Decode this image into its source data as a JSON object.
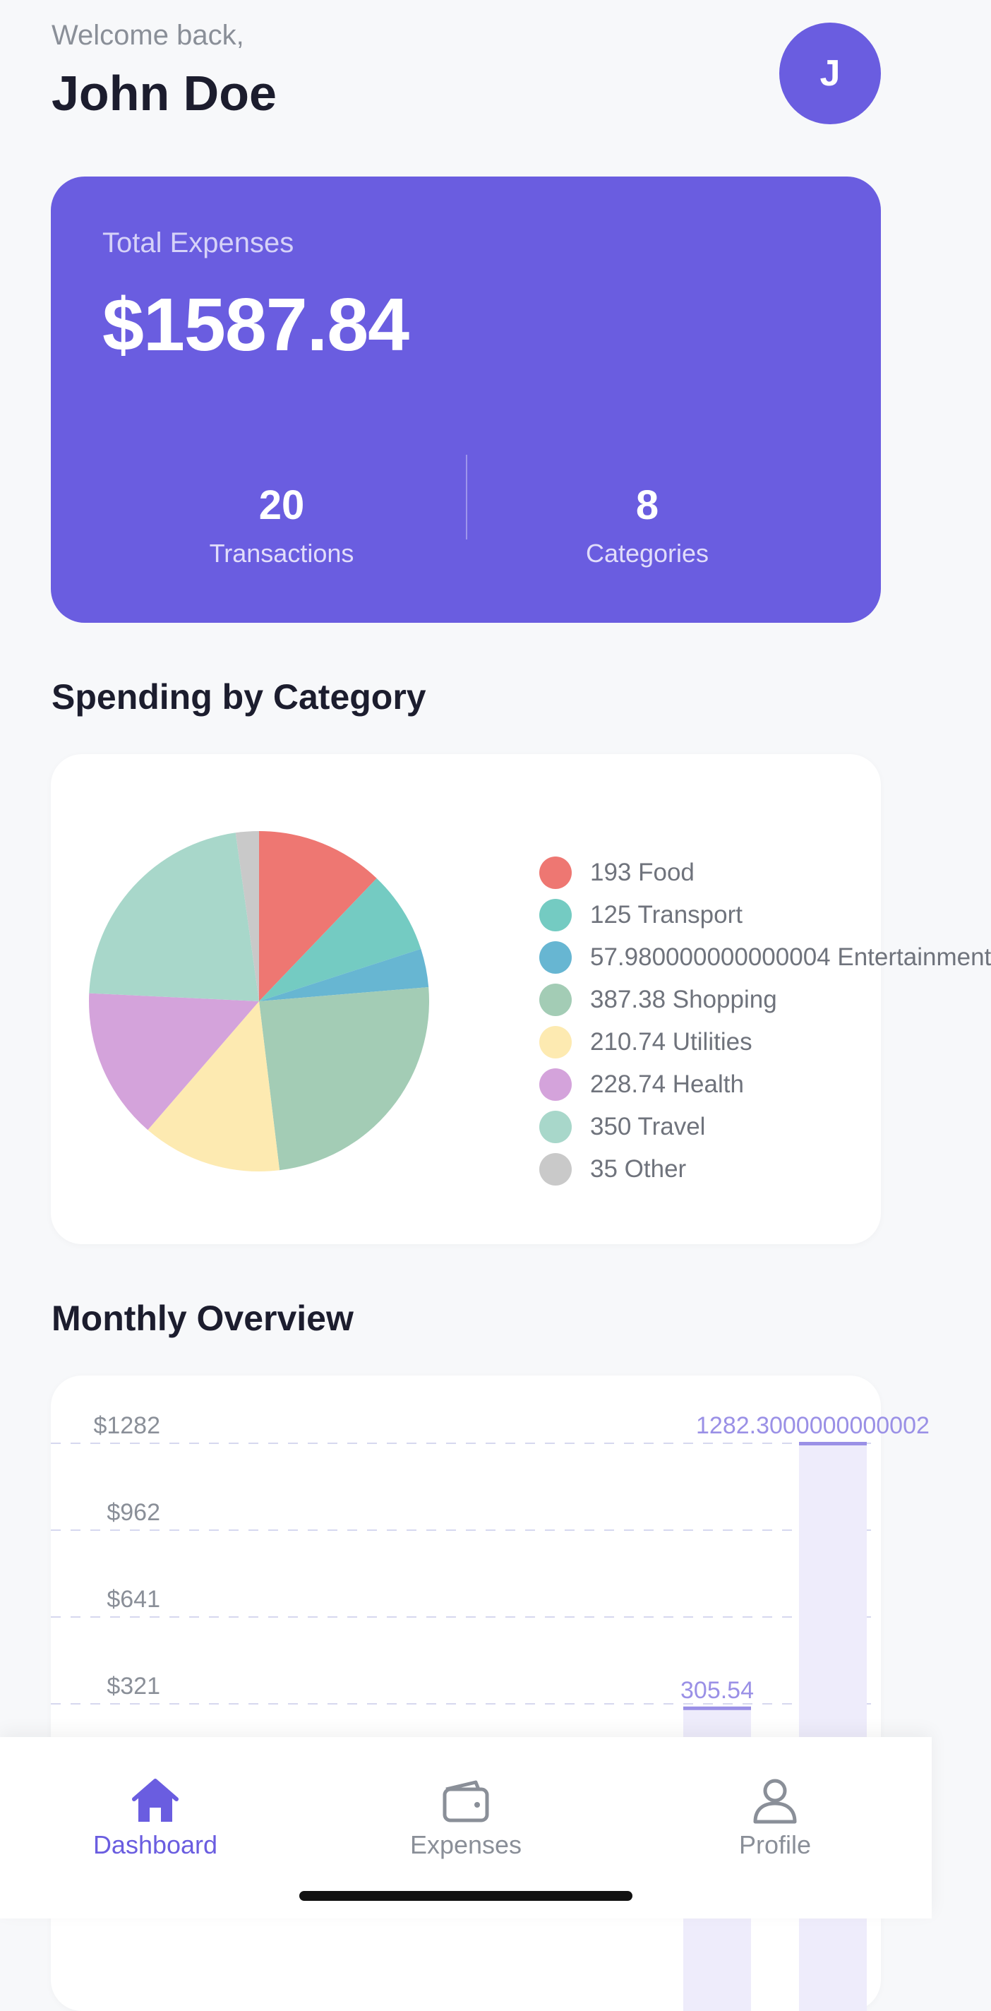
{
  "header": {
    "welcome": "Welcome back,",
    "username": "John Doe",
    "avatar_initial": "J"
  },
  "summary": {
    "label": "Total Expenses",
    "amount": "$1587.84",
    "transactions_count": "20",
    "transactions_label": "Transactions",
    "categories_count": "8",
    "categories_label": "Categories"
  },
  "sections": {
    "spending_title": "Spending by Category",
    "monthly_title": "Monthly Overview"
  },
  "colors": {
    "accent": "#6a5de0",
    "background": "#f7f8fa",
    "card": "#ffffff",
    "bar_fill": "#eeecfb",
    "bar_line": "#9a90e6"
  },
  "chart_data": [
    {
      "type": "pie",
      "legend_position": "right",
      "slices": [
        {
          "label": "193 Food",
          "value": 193,
          "color": "#ee7772"
        },
        {
          "label": "125 Transport",
          "value": 125,
          "color": "#74cbc2"
        },
        {
          "label": "57.980000000000004 Entertainment",
          "value": 57.98,
          "color": "#67b6d2"
        },
        {
          "label": "387.38 Shopping",
          "value": 387.38,
          "color": "#a3ccb5"
        },
        {
          "label": "210.74 Utilities",
          "value": 210.74,
          "color": "#fdeab1"
        },
        {
          "label": "228.74 Health",
          "value": 228.74,
          "color": "#d4a3db"
        },
        {
          "label": "350 Travel",
          "value": 350,
          "color": "#a8d7ca"
        },
        {
          "label": "35 Other",
          "value": 35,
          "color": "#c9c9c9"
        }
      ]
    },
    {
      "type": "bar",
      "y_ticks": [
        "$1282",
        "$962",
        "$641",
        "$321"
      ],
      "ylim": [
        0,
        1282.3
      ],
      "grid": true,
      "bars": [
        {
          "value": 305.54,
          "label": "305.54"
        },
        {
          "value": 1282.3,
          "label": "1282.3000000000002"
        }
      ]
    }
  ],
  "tabbar": {
    "tabs": [
      {
        "label": "Dashboard",
        "icon": "home-icon",
        "active": true
      },
      {
        "label": "Expenses",
        "icon": "wallet-icon",
        "active": false
      },
      {
        "label": "Profile",
        "icon": "person-icon",
        "active": false
      }
    ]
  }
}
